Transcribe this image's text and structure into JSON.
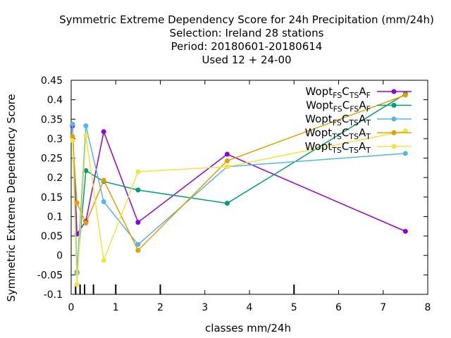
{
  "chart_data": {
    "type": "line",
    "title_lines": [
      "Symmetric Extreme Dependency Score  for 24h Precipitation (mm/24h)",
      "Selection: Ireland     28 stations",
      "Period: 20180601-20180614",
      "Used  12 + 24-00"
    ],
    "xlabel": "classes mm/24h",
    "ylabel": "Symmetric Extreme Dependency Score",
    "xlim": [
      0,
      8
    ],
    "ylim": [
      -0.1,
      0.45
    ],
    "xticks": [
      0,
      1,
      2,
      3,
      4,
      5,
      6,
      7,
      8
    ],
    "xtick_labels": [
      "0",
      "1",
      "2",
      "3",
      "4",
      "5",
      "6",
      "7",
      "8"
    ],
    "yticks": [
      -0.1,
      -0.05,
      0,
      0.05,
      0.1,
      0.15,
      0.2,
      0.25,
      0.3,
      0.35,
      0.4,
      0.45
    ],
    "ytick_labels": [
      "-0.1",
      "-0.05",
      "0",
      "0.05",
      "0.1",
      "0.15",
      "0.2",
      "0.25",
      "0.3",
      "0.35",
      "0.4",
      "0.45"
    ],
    "class_marks": [
      0.1,
      0.2,
      0.3,
      0.5,
      1,
      2,
      5
    ],
    "grid": false,
    "legend_position": "top-right",
    "series": [
      {
        "name_parts": [
          [
            "Wopt",
            ""
          ],
          [
            "FS",
            "sub"
          ],
          [
            "C",
            ""
          ],
          [
            "TS",
            "sub"
          ],
          [
            "A",
            ""
          ],
          [
            "F",
            "sub"
          ]
        ],
        "color": "#9400d3",
        "x": [
          0.03,
          0.13,
          0.33,
          0.73,
          1.5,
          3.5,
          7.5
        ],
        "y": [
          0.333,
          0.055,
          0.088,
          0.318,
          0.085,
          0.26,
          0.062
        ]
      },
      {
        "name_parts": [
          [
            "Wopt",
            ""
          ],
          [
            "FS",
            "sub"
          ],
          [
            "C",
            ""
          ],
          [
            "FS",
            "sub"
          ],
          [
            "A",
            ""
          ],
          [
            "F",
            "sub"
          ]
        ],
        "color": "#009e73",
        "x": [
          0.03,
          0.13,
          0.33,
          0.73,
          1.5,
          3.5,
          7.5
        ],
        "y": [
          0.337,
          -0.043,
          0.218,
          0.19,
          0.168,
          0.134,
          0.415
        ]
      },
      {
        "name_parts": [
          [
            "Wopt",
            ""
          ],
          [
            "FS",
            "sub"
          ],
          [
            "C",
            ""
          ],
          [
            "TS",
            "sub"
          ],
          [
            "A",
            ""
          ],
          [
            "T",
            "sub"
          ]
        ],
        "color": "#56b4e9",
        "x": [
          0.03,
          0.13,
          0.33,
          0.73,
          1.5,
          3.5,
          7.5
        ],
        "y": [
          0.337,
          -0.045,
          0.333,
          0.138,
          0.028,
          0.228,
          0.262
        ]
      },
      {
        "name_parts": [
          [
            "Wopt",
            ""
          ],
          [
            "TS",
            "sub"
          ],
          [
            "C",
            ""
          ],
          [
            "TS",
            "sub"
          ],
          [
            "A",
            ""
          ],
          [
            "T",
            "sub"
          ]
        ],
        "color": "#e69f00",
        "x": [
          0.03,
          0.13,
          0.33,
          0.73,
          1.5,
          3.5,
          7.5
        ],
        "y": [
          0.305,
          0.135,
          0.083,
          0.193,
          0.013,
          0.243,
          0.412
        ]
      },
      {
        "name_parts": [
          [
            "Wopt",
            ""
          ],
          [
            "TS",
            "sub"
          ],
          [
            "C",
            ""
          ],
          [
            "TS",
            "sub"
          ],
          [
            "A",
            ""
          ],
          [
            "T",
            "sub"
          ]
        ],
        "color": "#f0e442",
        "x": [
          0.03,
          0.13,
          0.33,
          0.73,
          1.5,
          3.5,
          7.5
        ],
        "y": [
          0.295,
          -0.075,
          0.308,
          -0.013,
          0.215,
          0.228,
          0.32
        ]
      }
    ]
  }
}
